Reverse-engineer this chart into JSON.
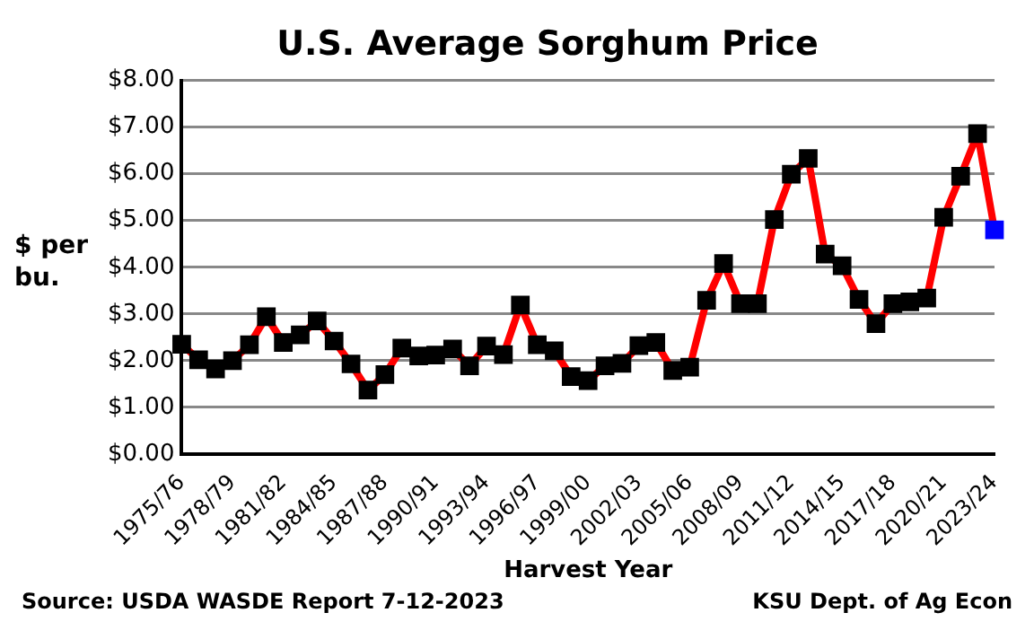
{
  "chart_data": {
    "type": "line",
    "title": "U.S. Average Sorghum Price",
    "xlabel": "Harvest Year",
    "ylabel": "$ per bu.",
    "categories": [
      "1975/76",
      null,
      null,
      "1978/79",
      null,
      null,
      "1981/82",
      null,
      null,
      "1984/85",
      null,
      null,
      "1987/88",
      null,
      null,
      "1990/91",
      null,
      null,
      "1993/94",
      null,
      null,
      "1996/97",
      null,
      null,
      "1999/00",
      null,
      null,
      "2002/03",
      null,
      null,
      "2005/06",
      null,
      null,
      "2008/09",
      null,
      null,
      "2011/12",
      null,
      null,
      "2014/15",
      null,
      null,
      "2017/18",
      null,
      null,
      "2020/21",
      null,
      null,
      "2023/24"
    ],
    "series": [
      {
        "color": "#ff0000",
        "colors": [
          "#000000",
          "#000000",
          "#000000",
          "#000000",
          "#000000",
          "#000000",
          "#000000",
          "#000000",
          "#000000",
          "#000000",
          "#000000",
          "#000000",
          "#000000",
          "#000000",
          "#000000",
          "#000000",
          "#000000",
          "#000000",
          "#000000",
          "#000000",
          "#000000",
          "#000000",
          "#000000",
          "#000000",
          "#000000",
          "#000000",
          "#000000",
          "#000000",
          "#000000",
          "#000000",
          "#000000",
          "#000000",
          "#000000",
          "#000000",
          "#000000",
          "#000000",
          "#000000",
          "#000000",
          "#000000",
          "#000000",
          "#000000",
          "#000000",
          "#000000",
          "#000000",
          "#000000",
          "#000000",
          "#000000",
          "#000000",
          "#0000ff"
        ],
        "values": [
          2.35,
          2.02,
          1.82,
          2.0,
          2.34,
          2.94,
          2.39,
          2.55,
          2.85,
          2.42,
          1.93,
          1.37,
          1.7,
          2.27,
          2.1,
          2.12,
          2.25,
          1.89,
          2.31,
          2.13,
          3.19,
          2.34,
          2.21,
          1.66,
          1.57,
          1.89,
          1.94,
          2.32,
          2.39,
          1.79,
          1.86,
          3.29,
          4.08,
          3.22,
          3.22,
          5.02,
          5.99,
          6.33,
          4.28,
          4.03,
          3.31,
          2.79,
          3.22,
          3.26,
          3.34,
          5.07,
          5.95,
          6.86,
          4.8
        ]
      }
    ],
    "ylim": [
      0,
      8
    ],
    "yticks": [
      {
        "value": 0,
        "label": "$0.00"
      },
      {
        "value": 1,
        "label": "$1.00"
      },
      {
        "value": 2,
        "label": "$2.00"
      },
      {
        "value": 3,
        "label": "$3.00"
      },
      {
        "value": 4,
        "label": "$4.00"
      },
      {
        "value": 5,
        "label": "$5.00"
      },
      {
        "value": 6,
        "label": "$6.00"
      },
      {
        "value": 7,
        "label": "$7.00"
      },
      {
        "value": 8,
        "label": "$8.00"
      }
    ],
    "grid": "y",
    "legend": false,
    "marker": "square",
    "line_style": "solid",
    "annotations": [
      "Source: USDA WASDE Report 7-12-2023",
      "KSU Dept. of Ag Econ"
    ]
  }
}
